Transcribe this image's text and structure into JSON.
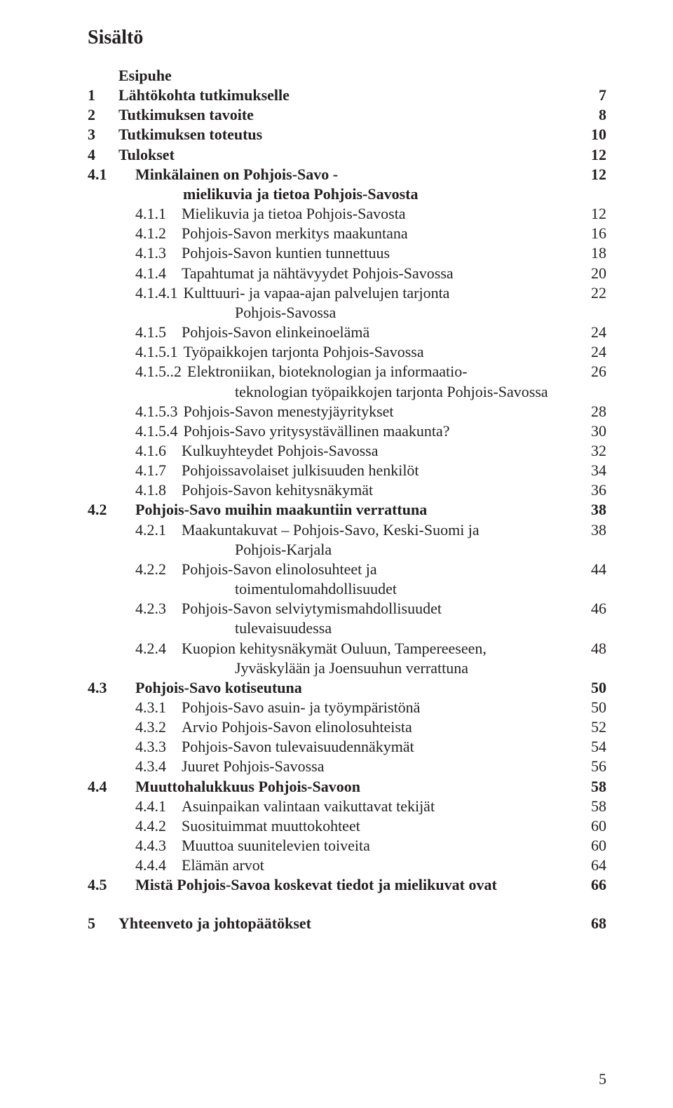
{
  "title": "Sisältö",
  "footer_page": "5",
  "toc": [
    {
      "type": "l1",
      "num": "",
      "label": "Esipuhe",
      "page": "",
      "bold": true
    },
    {
      "type": "l1",
      "num": "1",
      "label": "Lähtökohta tutkimukselle",
      "page": "7",
      "bold": true
    },
    {
      "type": "l1",
      "num": "2",
      "label": "Tutkimuksen tavoite",
      "page": "8",
      "bold": true
    },
    {
      "type": "l1",
      "num": "3",
      "label": "Tutkimuksen toteutus",
      "page": "10",
      "bold": true
    },
    {
      "type": "l1",
      "num": "4",
      "label": "Tulokset",
      "page": "12",
      "bold": true
    },
    {
      "type": "l2",
      "num": "4.1",
      "label": "Minkälainen on Pohjois-Savo -",
      "page": "12",
      "bold": true
    },
    {
      "type": "cont1",
      "label": "mielikuvia ja tietoa Pohjois-Savosta",
      "bold": true
    },
    {
      "type": "l3",
      "num": "4.1.1",
      "gap": "lg",
      "label": "Mielikuvia ja tietoa Pohjois-Savosta",
      "page": "12"
    },
    {
      "type": "l3",
      "num": "4.1.2",
      "gap": "lg",
      "label": "Pohjois-Savon merkitys maakuntana",
      "page": "16"
    },
    {
      "type": "l3",
      "num": "4.1.3",
      "gap": "lg",
      "label": "Pohjois-Savon kuntien tunnettuus",
      "page": "18"
    },
    {
      "type": "l3",
      "num": "4.1.4",
      "gap": "lg",
      "label": "Tapahtumat ja nähtävyydet Pohjois-Savossa",
      "page": "20"
    },
    {
      "type": "l3",
      "num": "4.1.4.1",
      "gap": "sm",
      "label": "Kulttuuri- ja vapaa-ajan palvelujen tarjonta",
      "page": "22"
    },
    {
      "type": "cont2",
      "label": "Pohjois-Savossa"
    },
    {
      "type": "l3",
      "num": "4.1.5",
      "gap": "lg",
      "label": "Pohjois-Savon elinkeinoelämä",
      "page": "24"
    },
    {
      "type": "l3",
      "num": "4.1.5.1",
      "gap": "sm",
      "label": "Työpaikkojen tarjonta Pohjois-Savossa",
      "page": "24"
    },
    {
      "type": "l3",
      "num": "4.1.5..2",
      "gap": "sm",
      "label": "Elektroniikan, bioteknologian ja informaatio-",
      "page": "26"
    },
    {
      "type": "cont2",
      "label": "teknologian työpaikkojen tarjonta Pohjois-Savossa"
    },
    {
      "type": "l3",
      "num": "4.1.5.3",
      "gap": "sm",
      "label": "Pohjois-Savon menestyjäyritykset",
      "page": "28"
    },
    {
      "type": "l3",
      "num": "4.1.5.4",
      "gap": "sm",
      "label": "Pohjois-Savo yritysystävällinen maakunta?",
      "page": "30"
    },
    {
      "type": "l3",
      "num": "4.1.6",
      "gap": "lg",
      "label": "Kulkuyhteydet Pohjois-Savossa",
      "page": "32"
    },
    {
      "type": "l3",
      "num": "4.1.7",
      "gap": "lg",
      "label": "Pohjoissavolaiset julkisuuden henkilöt",
      "page": "34"
    },
    {
      "type": "l3",
      "num": "4.1.8",
      "gap": "lg",
      "label": "Pohjois-Savon kehitysnäkymät",
      "page": "36"
    },
    {
      "type": "l2",
      "num": "4.2",
      "label": "Pohjois-Savo muihin maakuntiin verrattuna",
      "page": "38",
      "bold": true
    },
    {
      "type": "l3",
      "num": "4.2.1",
      "gap": "lg",
      "label": "Maakuntakuvat – Pohjois-Savo, Keski-Suomi ja",
      "page": "38"
    },
    {
      "type": "cont2",
      "label": "Pohjois-Karjala"
    },
    {
      "type": "l3",
      "num": "4.2.2",
      "gap": "lg",
      "label": "Pohjois-Savon elinolosuhteet ja",
      "page": "44"
    },
    {
      "type": "cont2",
      "label": "toimentulomahdollisuudet"
    },
    {
      "type": "l3",
      "num": "4.2.3",
      "gap": "lg",
      "label": "Pohjois-Savon selviytymismahdollisuudet",
      "page": "46"
    },
    {
      "type": "cont2",
      "label": "tulevaisuudessa"
    },
    {
      "type": "l3",
      "num": "4.2.4",
      "gap": "lg",
      "label": "Kuopion kehitysnäkymät Ouluun, Tampereeseen,",
      "page": "48"
    },
    {
      "type": "cont2",
      "label": "Jyväskylään ja Joensuuhun verrattuna"
    },
    {
      "type": "l2",
      "num": "4.3",
      "label": "Pohjois-Savo kotiseutuna",
      "page": "50",
      "bold": true
    },
    {
      "type": "l3",
      "num": "4.3.1",
      "gap": "lg",
      "label": "Pohjois-Savo asuin- ja työympäristönä",
      "page": "50"
    },
    {
      "type": "l3",
      "num": "4.3.2",
      "gap": "lg",
      "label": "Arvio Pohjois-Savon elinolosuhteista",
      "page": "52"
    },
    {
      "type": "l3",
      "num": "4.3.3",
      "gap": "lg",
      "label": "Pohjois-Savon tulevaisuudennäkymät",
      "page": "54"
    },
    {
      "type": "l3",
      "num": "4.3.4",
      "gap": "lg",
      "label": "Juuret Pohjois-Savossa",
      "page": "56"
    },
    {
      "type": "l2",
      "num": "4.4",
      "label": "Muuttohalukkuus Pohjois-Savoon",
      "page": "58",
      "bold": true
    },
    {
      "type": "l3",
      "num": "4.4.1",
      "gap": "lg",
      "label": "Asuinpaikan valintaan vaikuttavat tekijät",
      "page": "58"
    },
    {
      "type": "l3",
      "num": "4.4.2",
      "gap": "lg",
      "label": "Suosituimmat muuttokohteet",
      "page": "60"
    },
    {
      "type": "l3",
      "num": "4.4.3",
      "gap": "lg",
      "label": "Muuttoa suunitelevien toiveita",
      "page": "60"
    },
    {
      "type": "l3",
      "num": "4.4.4",
      "gap": "lg",
      "label": "Elämän arvot",
      "page": "64"
    },
    {
      "type": "l2",
      "num": "4.5",
      "label": "Mistä Pohjois-Savoa koskevat tiedot ja mielikuvat ovat",
      "page": "66",
      "bold": true
    },
    {
      "type": "spacer"
    },
    {
      "type": "l1",
      "num": "5",
      "label": "Yhteenveto ja johtopäätökset",
      "page": "68",
      "bold": true
    }
  ]
}
